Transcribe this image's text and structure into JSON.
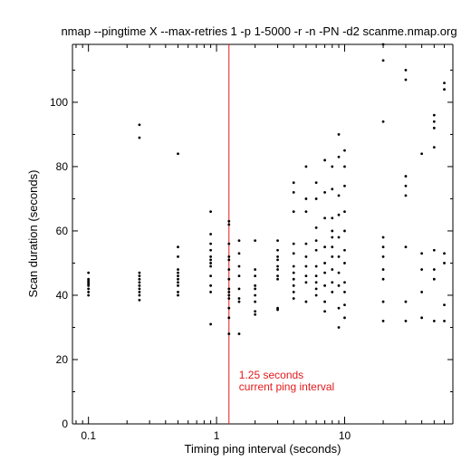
{
  "chart_data": {
    "type": "scatter",
    "title": "nmap --pingtime X --max-retries 1 -p 1-5000 -r -n -PN -d2 scanme.nmap.org",
    "xlabel": "Timing ping interval (seconds)",
    "ylabel": "Scan duration (seconds)",
    "xscale": "log",
    "xlim": [
      0.075,
      70
    ],
    "ylim": [
      0,
      118
    ],
    "x_ticks": [
      {
        "value": 0.1,
        "label": "0.1"
      },
      {
        "value": 1,
        "label": "1"
      },
      {
        "value": 10,
        "label": "10"
      }
    ],
    "y_ticks": [
      {
        "value": 0,
        "label": "0"
      },
      {
        "value": 20,
        "label": "20"
      },
      {
        "value": 40,
        "label": "40"
      },
      {
        "value": 60,
        "label": "60"
      },
      {
        "value": 80,
        "label": "80"
      },
      {
        "value": 100,
        "label": "100"
      }
    ],
    "grid": false,
    "marker_color": "#000000",
    "reference_line": {
      "x": 1.25,
      "color": "#e31a1c",
      "label_lines": [
        "1.25 seconds",
        "current ping interval"
      ]
    },
    "points": [
      [
        0.1,
        47
      ],
      [
        0.1,
        45
      ],
      [
        0.1,
        44.5
      ],
      [
        0.1,
        44
      ],
      [
        0.1,
        43.5
      ],
      [
        0.1,
        43
      ],
      [
        0.1,
        42
      ],
      [
        0.1,
        41
      ],
      [
        0.1,
        40
      ],
      [
        0.25,
        93
      ],
      [
        0.25,
        89
      ],
      [
        0.25,
        47
      ],
      [
        0.25,
        46
      ],
      [
        0.25,
        45
      ],
      [
        0.25,
        44
      ],
      [
        0.25,
        43
      ],
      [
        0.25,
        42
      ],
      [
        0.25,
        41
      ],
      [
        0.25,
        40
      ],
      [
        0.25,
        38.5
      ],
      [
        0.5,
        84
      ],
      [
        0.5,
        55
      ],
      [
        0.5,
        52
      ],
      [
        0.5,
        48
      ],
      [
        0.5,
        47
      ],
      [
        0.5,
        46
      ],
      [
        0.5,
        45
      ],
      [
        0.5,
        44
      ],
      [
        0.5,
        43
      ],
      [
        0.5,
        41
      ],
      [
        0.5,
        40
      ],
      [
        0.9,
        66
      ],
      [
        0.9,
        59
      ],
      [
        0.9,
        56
      ],
      [
        0.9,
        54
      ],
      [
        0.9,
        52
      ],
      [
        0.9,
        51
      ],
      [
        0.9,
        50
      ],
      [
        0.9,
        49
      ],
      [
        0.9,
        46
      ],
      [
        0.9,
        43
      ],
      [
        0.9,
        41
      ],
      [
        0.9,
        31
      ],
      [
        1.25,
        63
      ],
      [
        1.25,
        62
      ],
      [
        1.25,
        56
      ],
      [
        1.25,
        52
      ],
      [
        1.25,
        51
      ],
      [
        1.25,
        48
      ],
      [
        1.25,
        45
      ],
      [
        1.25,
        42
      ],
      [
        1.25,
        41
      ],
      [
        1.25,
        40
      ],
      [
        1.25,
        39
      ],
      [
        1.25,
        36
      ],
      [
        1.25,
        33
      ],
      [
        1.25,
        28
      ],
      [
        1.5,
        57
      ],
      [
        1.5,
        53
      ],
      [
        1.5,
        49
      ],
      [
        1.5,
        46
      ],
      [
        1.5,
        42
      ],
      [
        1.5,
        39
      ],
      [
        1.5,
        38
      ],
      [
        1.5,
        28
      ],
      [
        2,
        57
      ],
      [
        2,
        48
      ],
      [
        2,
        46
      ],
      [
        2,
        43
      ],
      [
        2,
        42
      ],
      [
        2,
        40
      ],
      [
        2,
        38
      ],
      [
        2,
        35
      ],
      [
        2,
        34
      ],
      [
        3,
        57
      ],
      [
        3,
        54
      ],
      [
        3,
        52
      ],
      [
        3,
        51
      ],
      [
        3,
        49
      ],
      [
        3,
        48
      ],
      [
        3,
        46
      ],
      [
        3,
        45
      ],
      [
        3,
        36
      ],
      [
        3,
        35.5
      ],
      [
        4,
        75
      ],
      [
        4,
        72
      ],
      [
        4,
        66
      ],
      [
        4,
        56
      ],
      [
        4,
        53
      ],
      [
        4,
        49
      ],
      [
        4,
        47
      ],
      [
        4,
        45
      ],
      [
        4,
        43
      ],
      [
        4,
        41
      ],
      [
        4,
        39
      ],
      [
        5,
        80
      ],
      [
        5,
        70
      ],
      [
        5,
        66
      ],
      [
        5,
        56
      ],
      [
        5,
        52
      ],
      [
        5,
        49
      ],
      [
        5,
        46
      ],
      [
        5,
        44
      ],
      [
        5,
        38
      ],
      [
        6,
        75
      ],
      [
        6,
        70
      ],
      [
        6,
        61
      ],
      [
        6,
        57
      ],
      [
        6,
        54
      ],
      [
        6,
        49
      ],
      [
        6,
        46
      ],
      [
        6,
        44
      ],
      [
        6,
        42
      ],
      [
        6,
        40
      ],
      [
        7,
        82
      ],
      [
        7,
        72
      ],
      [
        7,
        64
      ],
      [
        7,
        55
      ],
      [
        7,
        50
      ],
      [
        7,
        47
      ],
      [
        7,
        43
      ],
      [
        7,
        38
      ],
      [
        7,
        35
      ],
      [
        8,
        80
      ],
      [
        8,
        73
      ],
      [
        8,
        64
      ],
      [
        8,
        60
      ],
      [
        8,
        58
      ],
      [
        8,
        55
      ],
      [
        8,
        52
      ],
      [
        8,
        48
      ],
      [
        8,
        44
      ],
      [
        8,
        41
      ],
      [
        9,
        90
      ],
      [
        9,
        83
      ],
      [
        9,
        71
      ],
      [
        9,
        65
      ],
      [
        9,
        58
      ],
      [
        9,
        52
      ],
      [
        9,
        47
      ],
      [
        9,
        43
      ],
      [
        9,
        36
      ],
      [
        9,
        30
      ],
      [
        10,
        85
      ],
      [
        10,
        80
      ],
      [
        10,
        74
      ],
      [
        10,
        66
      ],
      [
        10,
        60
      ],
      [
        10,
        54
      ],
      [
        10,
        50
      ],
      [
        10,
        44
      ],
      [
        10,
        41
      ],
      [
        10,
        37
      ],
      [
        10,
        33
      ],
      [
        20,
        118
      ],
      [
        20,
        113
      ],
      [
        20,
        94
      ],
      [
        20,
        58
      ],
      [
        20,
        55
      ],
      [
        20,
        52
      ],
      [
        20,
        48
      ],
      [
        20,
        45
      ],
      [
        20,
        38
      ],
      [
        20,
        32
      ],
      [
        30,
        110
      ],
      [
        30,
        107
      ],
      [
        30,
        77
      ],
      [
        30,
        74
      ],
      [
        30,
        71
      ],
      [
        30,
        55
      ],
      [
        30,
        38
      ],
      [
        30,
        32
      ],
      [
        40,
        84
      ],
      [
        40,
        53
      ],
      [
        40,
        48
      ],
      [
        40,
        41
      ],
      [
        40,
        33
      ],
      [
        50,
        96
      ],
      [
        50,
        94
      ],
      [
        50,
        92
      ],
      [
        50,
        86
      ],
      [
        50,
        54
      ],
      [
        50,
        48
      ],
      [
        50,
        45
      ],
      [
        50,
        32
      ],
      [
        60,
        106
      ],
      [
        60,
        104
      ],
      [
        60,
        53
      ],
      [
        60,
        50
      ],
      [
        60,
        37
      ],
      [
        60,
        32
      ]
    ]
  }
}
